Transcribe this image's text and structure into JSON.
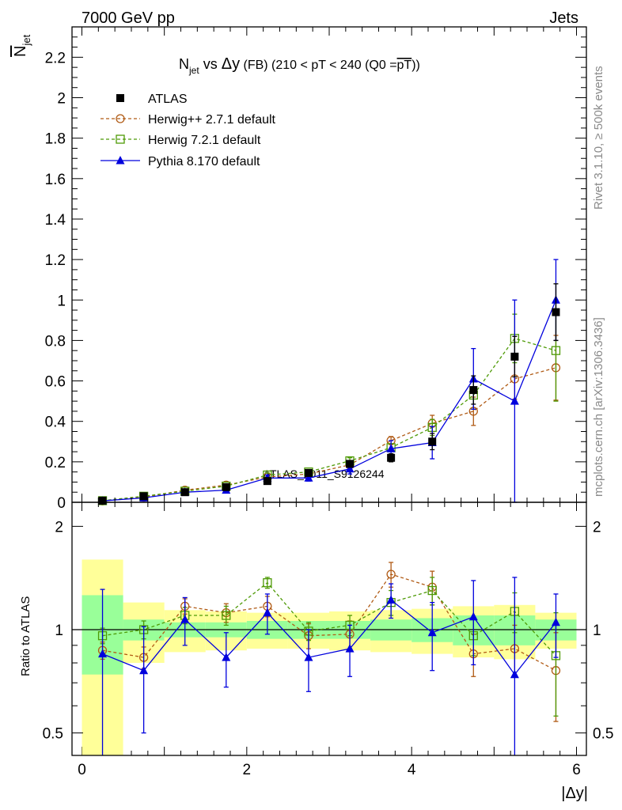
{
  "header": {
    "left": "7000 GeV pp",
    "right": "Jets"
  },
  "side_labels": {
    "rivet": "Rivet 3.1.10, ≥ 500k events",
    "mcplots": "mcplots.cern.ch [arXiv:1306.3436]"
  },
  "chart_data": {
    "type": "scatter",
    "title_main": "N",
    "title_main_sub": "jet",
    "title_vs": " vs ",
    "title_delta": "Δy",
    "title_fb": " (FB)",
    "title_range": " (210 < pT < 240 (Q0 =",
    "title_q0": "pT",
    "title_close": "))",
    "ylabel_main": "N",
    "ylabel_sub": "jet",
    "ylabel_ratio": "Ratio to ATLAS",
    "xlabel": "|Δy|",
    "watermark": "ATLAS_2011_S9126244",
    "xlim": [
      -0.12,
      6.12
    ],
    "ylim_main": [
      0,
      2.35
    ],
    "ylim_ratio": [
      0.43,
      2.35
    ],
    "main_yticks": [
      "0",
      "0.2",
      "0.4",
      "0.6",
      "0.8",
      "1",
      "1.2",
      "1.4",
      "1.6",
      "1.8",
      "2",
      "2.2"
    ],
    "main_ytick_values": [
      0,
      0.2,
      0.4,
      0.6,
      0.8,
      1.0,
      1.2,
      1.4,
      1.6,
      1.8,
      2.0,
      2.2
    ],
    "ratio_yticks": [
      "0.5",
      "1",
      "2"
    ],
    "ratio_ytick_values": [
      0.5,
      1,
      2
    ],
    "xticks": [
      "0",
      "2",
      "4",
      "6"
    ],
    "xtick_values": [
      0,
      2,
      4,
      6
    ],
    "x": [
      0.25,
      0.75,
      1.25,
      1.75,
      2.25,
      2.75,
      3.25,
      3.75,
      4.25,
      4.75,
      5.25,
      5.75
    ],
    "bin_edges": [
      0,
      0.5,
      1.0,
      1.5,
      2.0,
      2.5,
      3.0,
      3.5,
      4.0,
      4.5,
      5.0,
      5.5,
      6.0
    ],
    "series": [
      {
        "name": "ATLAS",
        "style": "data",
        "color": "#000000",
        "values": [
          0.008,
          0.03,
          0.05,
          0.075,
          0.105,
          0.145,
          0.19,
          0.22,
          0.3,
          0.555,
          0.72,
          0.94
        ],
        "errors": [
          0.001,
          0.002,
          0.003,
          0.004,
          0.006,
          0.01,
          0.015,
          0.02,
          0.04,
          0.07,
          0.1,
          0.14
        ]
      },
      {
        "name": "Herwig++ 2.7.1 default",
        "style": "circle",
        "color": "#b05a14",
        "values": [
          0.007,
          0.025,
          0.06,
          0.085,
          0.125,
          0.14,
          0.185,
          0.305,
          0.39,
          0.45,
          0.61,
          0.665
        ],
        "errors": [
          0.001,
          0.002,
          0.004,
          0.006,
          0.01,
          0.012,
          0.015,
          0.02,
          0.04,
          0.07,
          0.1,
          0.16
        ],
        "ratio": [
          0.87,
          0.83,
          1.17,
          1.12,
          1.17,
          0.96,
          0.97,
          1.45,
          1.33,
          0.85,
          0.88,
          0.76
        ],
        "ratio_errors": [
          0.05,
          0.06,
          0.06,
          0.07,
          0.08,
          0.08,
          0.09,
          0.12,
          0.15,
          0.12,
          0.15,
          0.22
        ]
      },
      {
        "name": "Herwig 7.2.1 default",
        "style": "square",
        "color": "#4e9a06",
        "values": [
          0.008,
          0.03,
          0.055,
          0.08,
          0.135,
          0.15,
          0.205,
          0.27,
          0.37,
          0.53,
          0.81,
          0.75
        ],
        "errors": [
          0.001,
          0.002,
          0.004,
          0.006,
          0.01,
          0.012,
          0.015,
          0.02,
          0.04,
          0.07,
          0.12,
          0.25
        ],
        "ratio": [
          0.96,
          1.0,
          1.1,
          1.1,
          1.37,
          0.99,
          1.03,
          1.2,
          1.3,
          0.96,
          1.13,
          0.84
        ],
        "ratio_errors": [
          0.05,
          0.06,
          0.06,
          0.07,
          0.05,
          0.06,
          0.07,
          0.1,
          0.12,
          0.12,
          0.15,
          0.28
        ]
      },
      {
        "name": "Pythia 8.170 default",
        "style": "triangle",
        "color": "#0000dd",
        "values": [
          0.007,
          0.022,
          0.05,
          0.06,
          0.12,
          0.12,
          0.165,
          0.265,
          0.295,
          0.61,
          0.5,
          1.0
        ],
        "errors": [
          0.001,
          0.003,
          0.004,
          0.006,
          0.015,
          0.015,
          0.025,
          0.04,
          0.08,
          0.15,
          0.5,
          0.2
        ],
        "ratio": [
          0.85,
          0.76,
          1.07,
          0.83,
          1.12,
          0.83,
          0.88,
          1.22,
          0.98,
          1.09,
          0.74,
          1.05
        ],
        "ratio_errors": [
          0.46,
          0.26,
          0.17,
          0.15,
          0.15,
          0.17,
          0.15,
          0.14,
          0.22,
          0.3,
          0.68,
          0.22
        ]
      }
    ],
    "ratio_band_inner": [
      0.26,
      0.07,
      0.05,
      0.05,
      0.06,
      0.06,
      0.06,
      0.07,
      0.08,
      0.1,
      0.1,
      0.07
    ],
    "ratio_band_outer": [
      0.6,
      0.2,
      0.14,
      0.13,
      0.12,
      0.12,
      0.13,
      0.14,
      0.15,
      0.17,
      0.18,
      0.12
    ]
  }
}
